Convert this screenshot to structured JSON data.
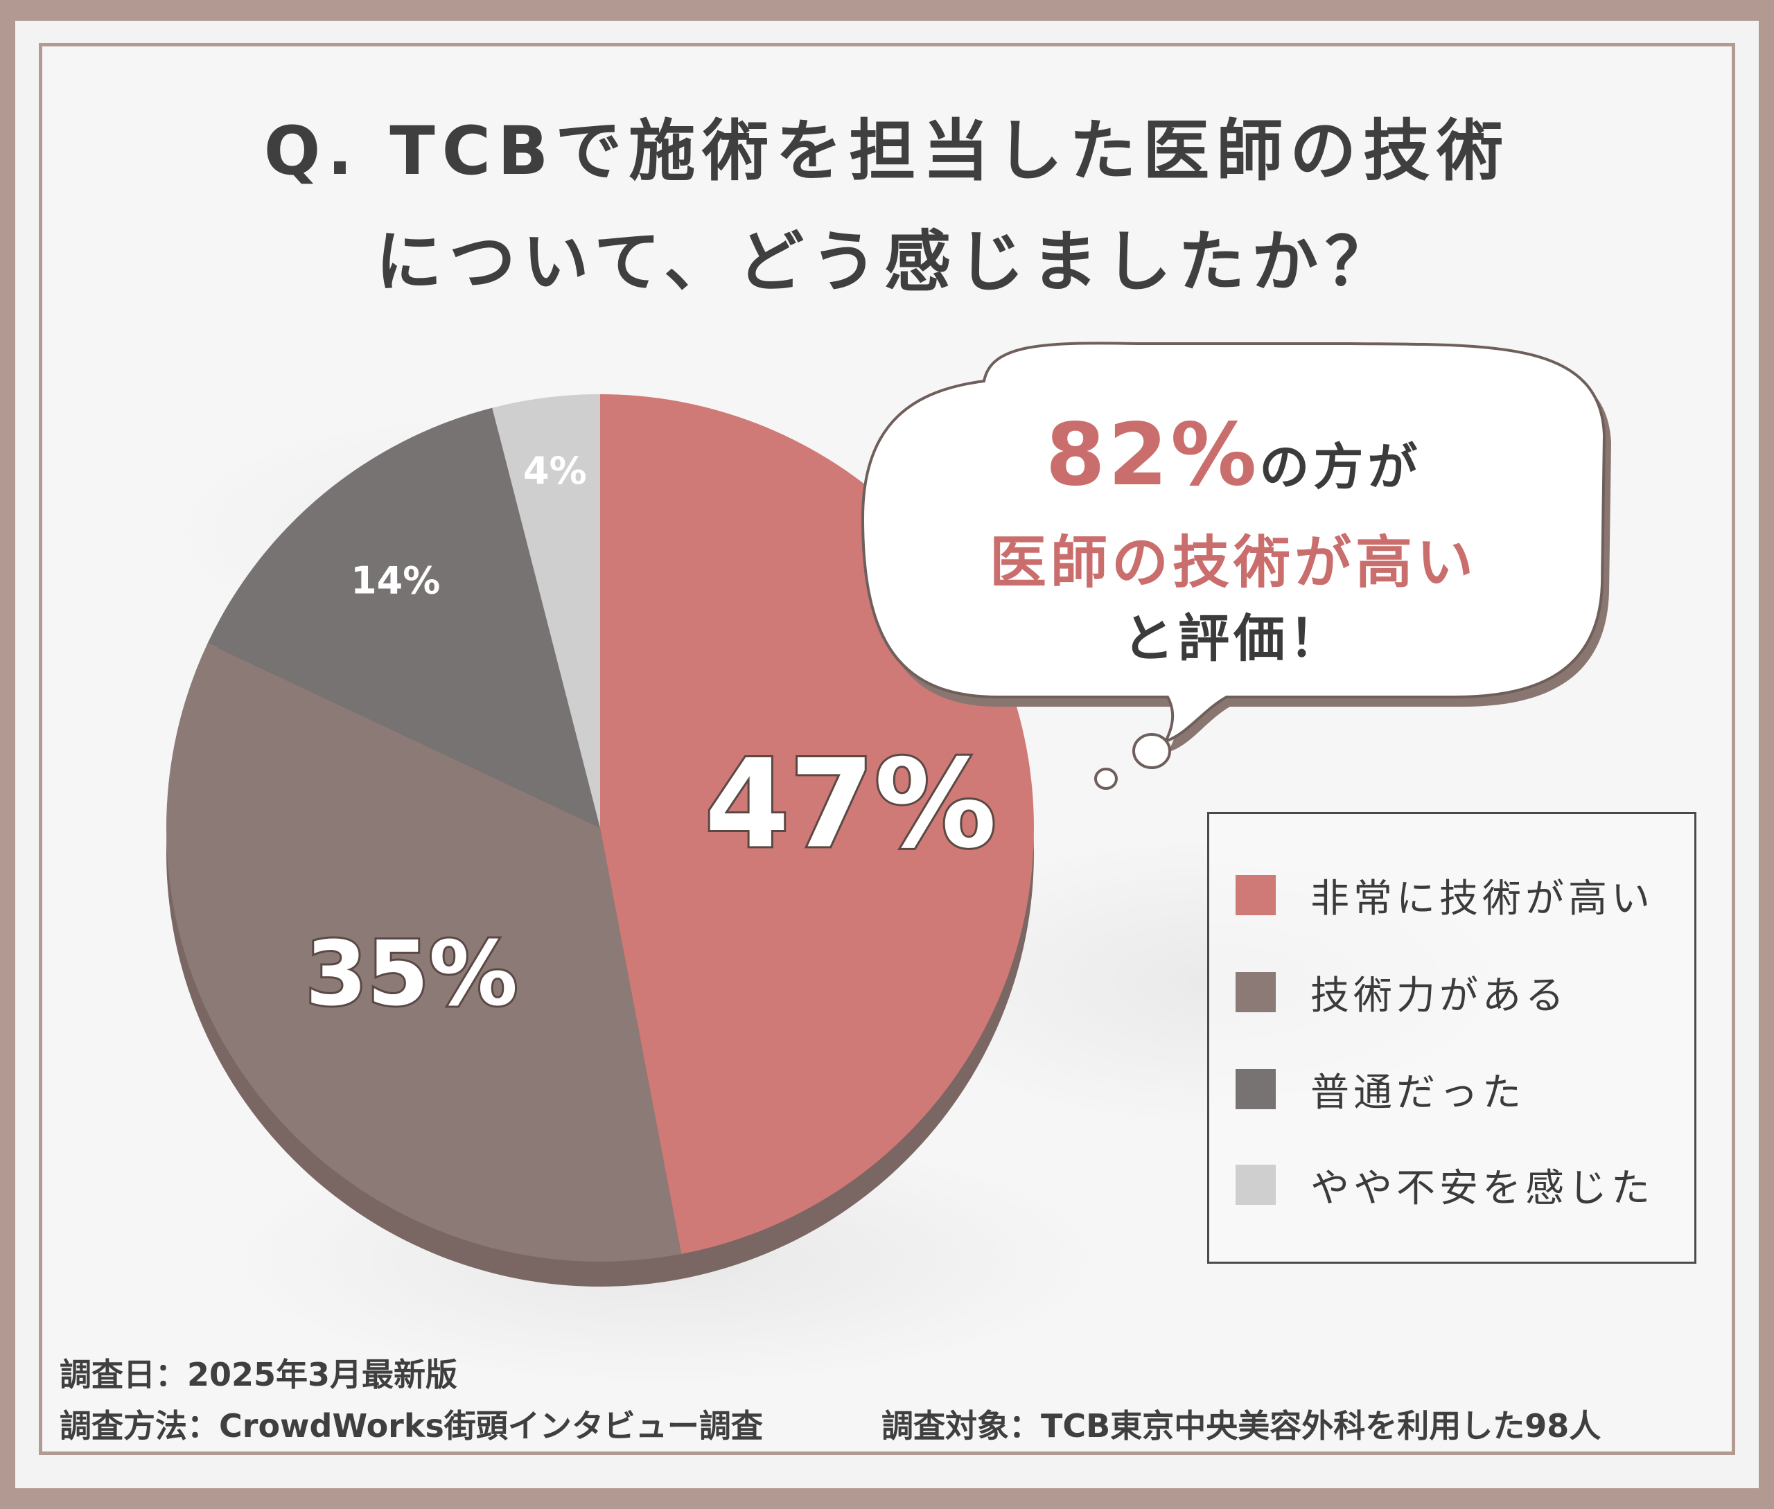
{
  "title": {
    "line1": "Q. TCBで施術を担当した医師の技術",
    "line2": "について、どう感じましたか？"
  },
  "callout": {
    "highlight_value": "82%",
    "line1_suffix": "の方が",
    "line2": "医師の技術が高い",
    "line3": "と評価！"
  },
  "colors": {
    "very_high": "#cf7a76",
    "skilled": "#8c7a77",
    "average": "#777372",
    "uneasy": "#cfcfcf",
    "accent": "#c96e6c",
    "frame": "#b29a92"
  },
  "chart_data": {
    "type": "pie",
    "slices": [
      {
        "label": "非常に技術が高い",
        "value": 47,
        "display": "47%"
      },
      {
        "label": "技術力がある",
        "value": 35,
        "display": "35%"
      },
      {
        "label": "普通だった",
        "value": 14,
        "display": "14%"
      },
      {
        "label": "やや不安を感じた",
        "value": 4,
        "display": "4%"
      }
    ],
    "legend_position": "right"
  },
  "footer": {
    "survey_date": "調査日：2025年3月最新版",
    "survey_method": "調査方法：CrowdWorks街頭インタビュー調査",
    "survey_target": "調査対象：TCB東京中央美容外科を利用した98人"
  }
}
